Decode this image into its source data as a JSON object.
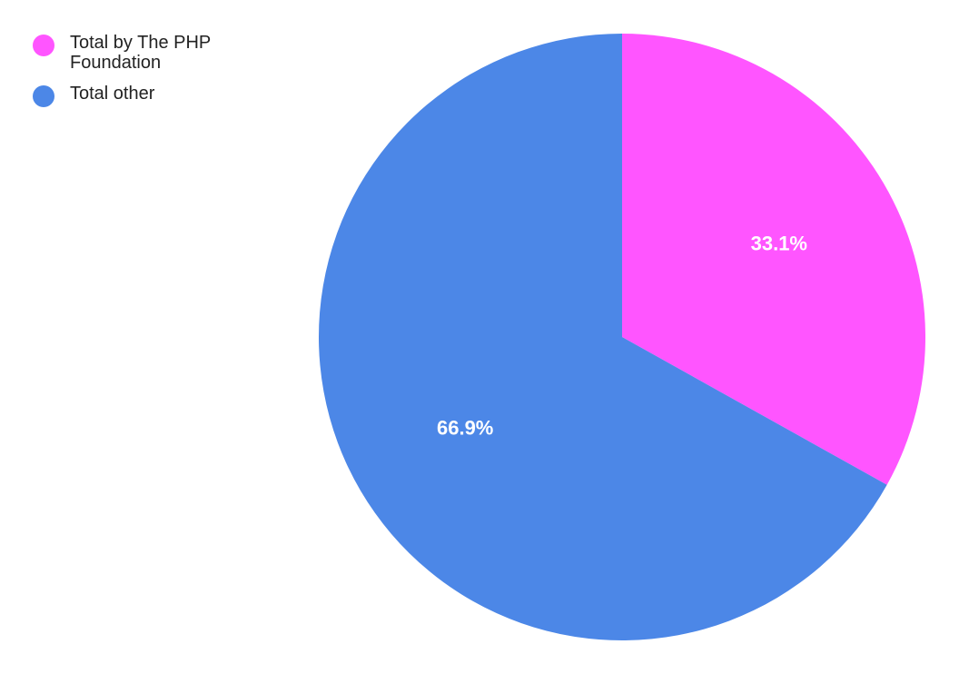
{
  "chart_data": {
    "type": "pie",
    "legend_position": "top-left",
    "slices": [
      {
        "label": "Total by The PHP Foundation",
        "value": 33.1,
        "display": "33.1%",
        "color": "#FF55FF"
      },
      {
        "label": "Total other",
        "value": 66.9,
        "display": "66.9%",
        "color": "#4C87E7"
      }
    ]
  }
}
